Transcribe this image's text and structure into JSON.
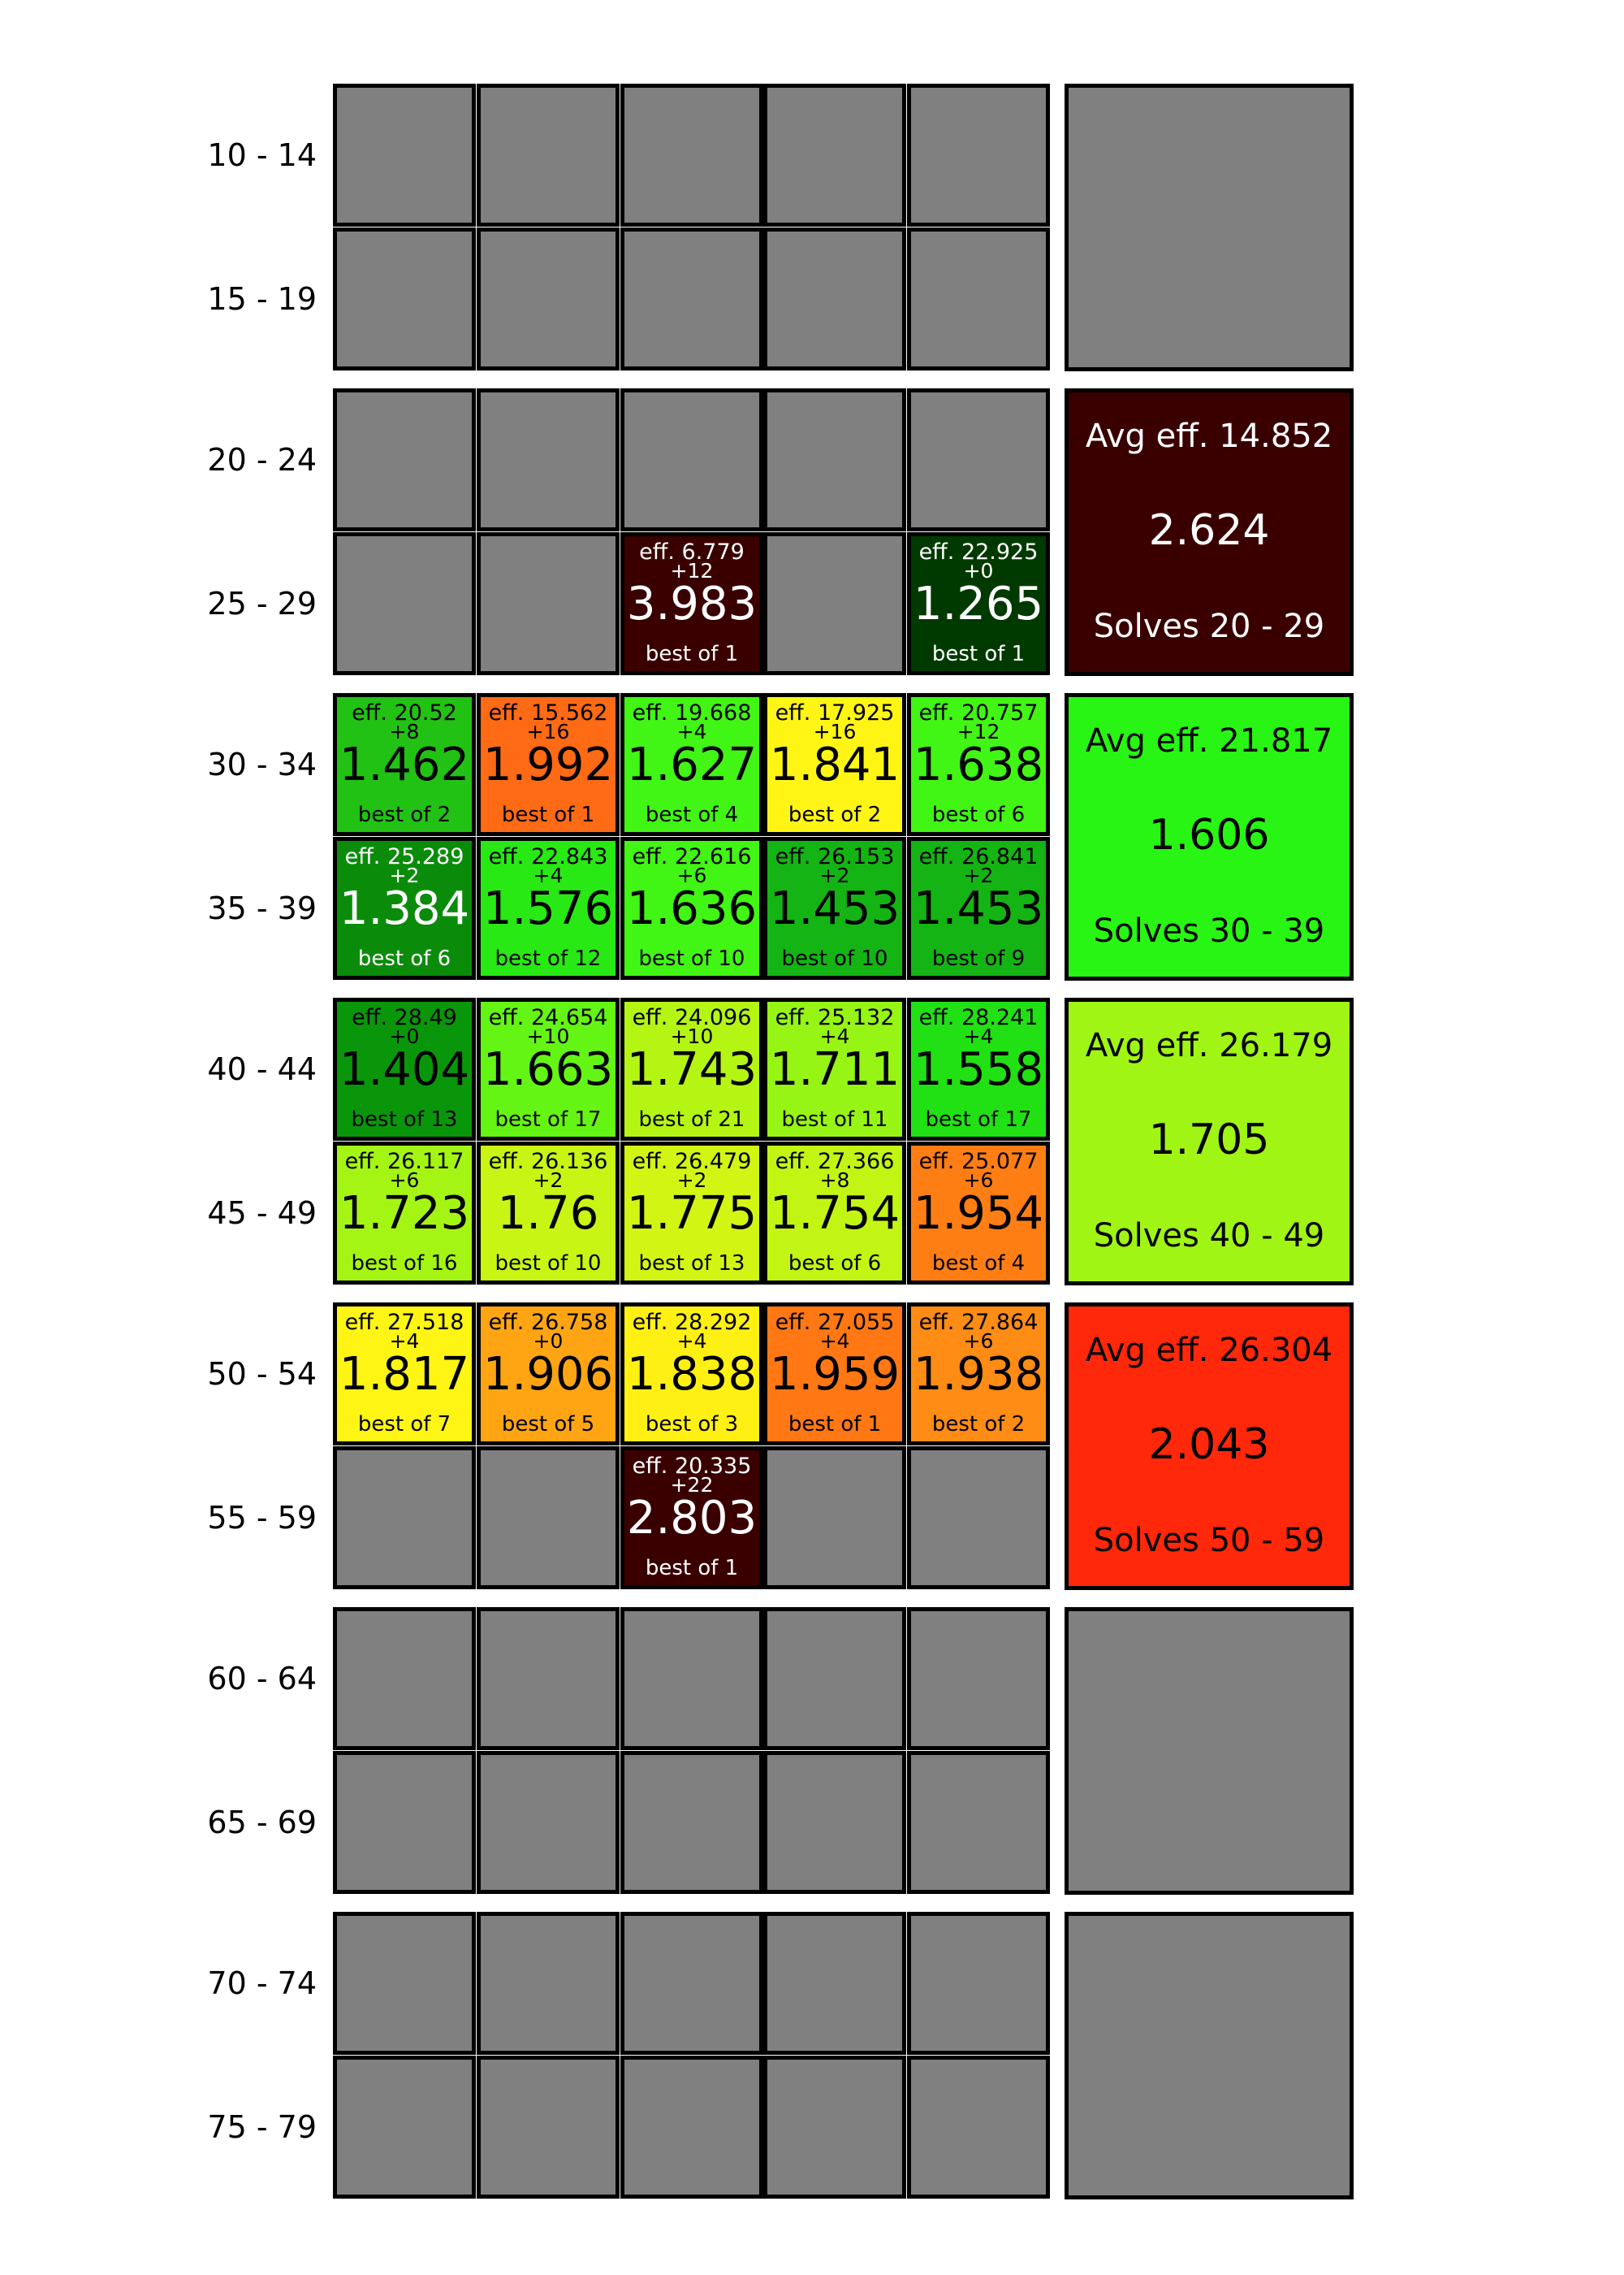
{
  "rows": [
    {
      "label": "10 - 14",
      "cells": [
        null,
        null,
        null,
        null,
        null
      ]
    },
    {
      "label": "15 - 19",
      "cells": [
        null,
        null,
        null,
        null,
        null
      ]
    },
    {
      "label": "20 - 24",
      "cells": [
        null,
        null,
        null,
        null,
        null
      ]
    },
    {
      "label": "25 - 29",
      "cells": [
        null,
        null,
        {
          "eff": "eff. 6.779",
          "plus": "+12",
          "value": "3.983",
          "best": "best of 1",
          "color": "#3a0000",
          "text": "light"
        },
        null,
        {
          "eff": "eff. 22.925",
          "plus": "+0",
          "value": "1.265",
          "best": "best of 1",
          "color": "#003a00",
          "text": "light"
        }
      ]
    },
    {
      "label": "30 - 34",
      "cells": [
        {
          "eff": "eff. 20.52",
          "plus": "+8",
          "value": "1.462",
          "best": "best of 2",
          "color": "#21c214",
          "text": "dark"
        },
        {
          "eff": "eff. 15.562",
          "plus": "+16",
          "value": "1.992",
          "best": "best of 1",
          "color": "#ff6a14",
          "text": "dark"
        },
        {
          "eff": "eff. 19.668",
          "plus": "+4",
          "value": "1.627",
          "best": "best of 4",
          "color": "#41f514",
          "text": "dark"
        },
        {
          "eff": "eff. 17.925",
          "plus": "+16",
          "value": "1.841",
          "best": "best of 2",
          "color": "#fff514",
          "text": "dark"
        },
        {
          "eff": "eff. 20.757",
          "plus": "+12",
          "value": "1.638",
          "best": "best of 6",
          "color": "#41f514",
          "text": "dark"
        }
      ]
    },
    {
      "label": "35 - 39",
      "cells": [
        {
          "eff": "eff. 25.289",
          "plus": "+2",
          "value": "1.384",
          "best": "best of 6",
          "color": "#0a8c0a",
          "text": "light"
        },
        {
          "eff": "eff. 22.843",
          "plus": "+4",
          "value": "1.576",
          "best": "best of 12",
          "color": "#28e914",
          "text": "dark"
        },
        {
          "eff": "eff. 22.616",
          "plus": "+6",
          "value": "1.636",
          "best": "best of 10",
          "color": "#41f514",
          "text": "dark"
        },
        {
          "eff": "eff. 26.153",
          "plus": "+2",
          "value": "1.453",
          "best": "best of 10",
          "color": "#14b414",
          "text": "dark"
        },
        {
          "eff": "eff. 26.841",
          "plus": "+2",
          "value": "1.453",
          "best": "best of 9",
          "color": "#14b414",
          "text": "dark"
        }
      ]
    },
    {
      "label": "40 - 44",
      "cells": [
        {
          "eff": "eff. 28.49",
          "plus": "+0",
          "value": "1.404",
          "best": "best of 13",
          "color": "#0a960a",
          "text": "dark"
        },
        {
          "eff": "eff. 24.654",
          "plus": "+10",
          "value": "1.663",
          "best": "best of 17",
          "color": "#64f514",
          "text": "dark"
        },
        {
          "eff": "eff. 24.096",
          "plus": "+10",
          "value": "1.743",
          "best": "best of 21",
          "color": "#b4f514",
          "text": "dark"
        },
        {
          "eff": "eff. 25.132",
          "plus": "+4",
          "value": "1.711",
          "best": "best of 11",
          "color": "#96f514",
          "text": "dark"
        },
        {
          "eff": "eff. 28.241",
          "plus": "+4",
          "value": "1.558",
          "best": "best of 17",
          "color": "#21e114",
          "text": "dark"
        }
      ]
    },
    {
      "label": "45 - 49",
      "cells": [
        {
          "eff": "eff. 26.117",
          "plus": "+6",
          "value": "1.723",
          "best": "best of 16",
          "color": "#a5f514",
          "text": "dark"
        },
        {
          "eff": "eff. 26.136",
          "plus": "+2",
          "value": "1.76",
          "best": "best of 10",
          "color": "#c8f514",
          "text": "dark"
        },
        {
          "eff": "eff. 26.479",
          "plus": "+2",
          "value": "1.775",
          "best": "best of 13",
          "color": "#d2f514",
          "text": "dark"
        },
        {
          "eff": "eff. 27.366",
          "plus": "+8",
          "value": "1.754",
          "best": "best of 6",
          "color": "#c3f514",
          "text": "dark"
        },
        {
          "eff": "eff. 25.077",
          "plus": "+6",
          "value": "1.954",
          "best": "best of 4",
          "color": "#ff7e14",
          "text": "dark"
        }
      ]
    },
    {
      "label": "50 - 54",
      "cells": [
        {
          "eff": "eff. 27.518",
          "plus": "+4",
          "value": "1.817",
          "best": "best of 7",
          "color": "#fff514",
          "text": "dark"
        },
        {
          "eff": "eff. 26.758",
          "plus": "+0",
          "value": "1.906",
          "best": "best of 5",
          "color": "#ffa514",
          "text": "dark"
        },
        {
          "eff": "eff. 28.292",
          "plus": "+4",
          "value": "1.838",
          "best": "best of 3",
          "color": "#fff014",
          "text": "dark"
        },
        {
          "eff": "eff. 27.055",
          "plus": "+4",
          "value": "1.959",
          "best": "best of 1",
          "color": "#ff7814",
          "text": "dark"
        },
        {
          "eff": "eff. 27.864",
          "plus": "+6",
          "value": "1.938",
          "best": "best of 2",
          "color": "#ff8c14",
          "text": "dark"
        }
      ]
    },
    {
      "label": "55 - 59",
      "cells": [
        null,
        null,
        {
          "eff": "eff. 20.335",
          "plus": "+22",
          "value": "2.803",
          "best": "best of 1",
          "color": "#3a0000",
          "text": "light"
        },
        null,
        null
      ]
    },
    {
      "label": "60 - 64",
      "cells": [
        null,
        null,
        null,
        null,
        null
      ]
    },
    {
      "label": "65 - 69",
      "cells": [
        null,
        null,
        null,
        null,
        null
      ]
    },
    {
      "label": "70 - 74",
      "cells": [
        null,
        null,
        null,
        null,
        null
      ]
    },
    {
      "label": "75 - 79",
      "cells": [
        null,
        null,
        null,
        null,
        null
      ]
    }
  ],
  "summaries": [
    null,
    {
      "avg": "Avg eff. 14.852",
      "value": "2.624",
      "solves": "Solves 20 - 29",
      "color": "#3a0000",
      "text": "light"
    },
    {
      "avg": "Avg eff. 21.817",
      "value": "1.606",
      "solves": "Solves 30 - 39",
      "color": "#28f514",
      "text": "dark"
    },
    {
      "avg": "Avg eff. 26.179",
      "value": "1.705",
      "solves": "Solves 40 - 49",
      "color": "#a0f514",
      "text": "dark"
    },
    {
      "avg": "Avg eff. 26.304",
      "value": "2.043",
      "solves": "Solves 50 - 59",
      "color": "#ff280a",
      "text": "dark"
    },
    null,
    null
  ],
  "colors": {
    "empty": "#808080",
    "border": "#000000",
    "background": "#ffffff"
  }
}
